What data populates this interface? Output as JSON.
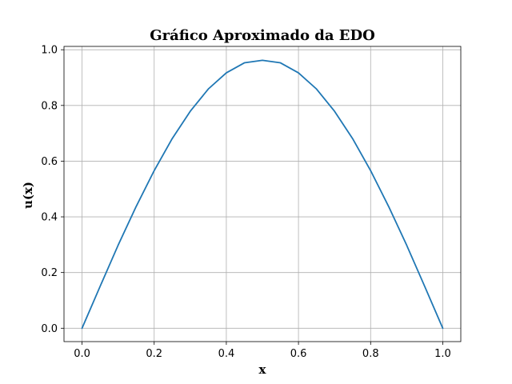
{
  "chart_data": {
    "type": "line",
    "title": "Gráfico Aproximado da EDO",
    "xlabel": "x",
    "ylabel": "u(x)",
    "xlim": [
      -0.05,
      1.05
    ],
    "ylim": [
      -0.048,
      1.012
    ],
    "xticks": [
      0.0,
      0.2,
      0.4,
      0.6,
      0.8,
      1.0
    ],
    "xtick_labels": [
      "0.0",
      "0.2",
      "0.4",
      "0.6",
      "0.8",
      "1.0"
    ],
    "yticks": [
      0.0,
      0.2,
      0.4,
      0.6,
      0.8,
      1.0
    ],
    "ytick_labels": [
      "0.0",
      "0.2",
      "0.4",
      "0.6",
      "0.8",
      "1.0"
    ],
    "grid": true,
    "series": [
      {
        "color": "#1f77b4",
        "x": [
          0.0,
          0.05,
          0.1,
          0.15,
          0.2,
          0.25,
          0.3,
          0.35,
          0.4,
          0.45,
          0.5,
          0.55,
          0.6,
          0.65,
          0.7,
          0.75,
          0.8,
          0.85,
          0.9,
          0.95,
          1.0
        ],
        "y": [
          0.0,
          0.15,
          0.298,
          0.437,
          0.566,
          0.681,
          0.779,
          0.859,
          0.917,
          0.953,
          0.962,
          0.953,
          0.917,
          0.859,
          0.779,
          0.681,
          0.566,
          0.437,
          0.298,
          0.15,
          0.0
        ]
      }
    ]
  }
}
